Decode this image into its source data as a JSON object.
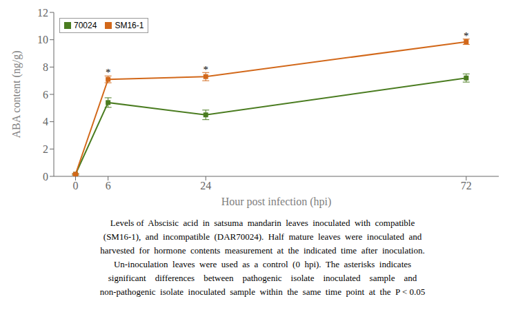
{
  "chart_data": {
    "type": "line",
    "x": [
      0,
      6,
      24,
      72
    ],
    "xlabel": "Hour post infection (hpi)",
    "ylabel": "ABA content (ng/g)",
    "xlim": [
      -4,
      78
    ],
    "xticks": [
      0,
      6,
      24,
      72
    ],
    "ylim": [
      0,
      12
    ],
    "yticks": [
      0,
      2,
      4,
      6,
      8,
      10,
      12
    ],
    "grid": false,
    "legend": "upper left",
    "series": [
      {
        "name": "70024",
        "color": "#4a7c20",
        "marker": "square",
        "values": [
          0.15,
          5.4,
          4.5,
          7.2
        ],
        "errors": [
          0.05,
          0.35,
          0.35,
          0.3
        ]
      },
      {
        "name": "SM16-1",
        "color": "#d2681a",
        "marker": "square",
        "values": [
          0.15,
          7.1,
          7.3,
          9.85
        ],
        "errors": [
          0.05,
          0.25,
          0.3,
          0.2
        ]
      }
    ],
    "annotations": [
      {
        "x": 6,
        "y": 7.55,
        "text": "*"
      },
      {
        "x": 24,
        "y": 7.78,
        "text": "*"
      },
      {
        "x": 72,
        "y": 10.22,
        "text": "*"
      }
    ],
    "caption": [
      "Levels of  Abscisic  acid  in  satsuma  mandarin  leaves  inoculated  with  compatible",
      "(SM16-1),  and  incompatible  (DAR70024).  Half  mature  leaves  were  inoculated  and",
      "harvested  for  hormone  contents  measurement  at  the  indicated  time  after  inoculation.",
      "Un-inoculation  leaves  were  used  as  a  control  (0  hpi).  The  asterisks  indicates",
      "significant    differences    between    pathogenic    isolate    inoculated    sample    and",
      "non-pathogenic  isolate  inoculated  sample  within  the  same  time  point  at  the  P < 0.05"
    ]
  }
}
